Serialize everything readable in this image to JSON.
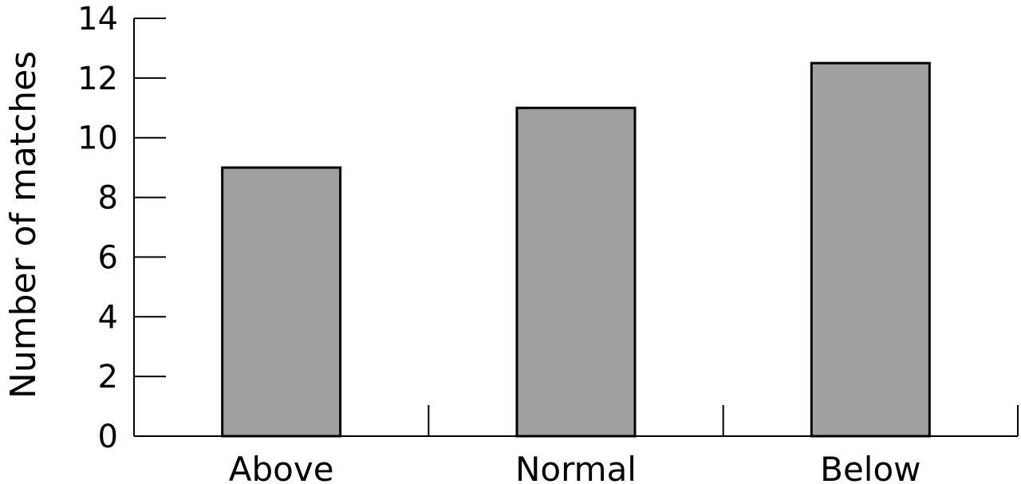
{
  "chart_data": {
    "type": "bar",
    "categories": [
      "Above",
      "Normal",
      "Below"
    ],
    "values": [
      9,
      11,
      12.5
    ],
    "title": "",
    "xlabel": "",
    "ylabel": "Number of matches",
    "ylim": [
      0,
      14
    ],
    "yticks": [
      0,
      2,
      4,
      6,
      8,
      10,
      12,
      14
    ],
    "grid": false,
    "colors": {
      "bar_fill": "#a0a0a0",
      "bar_stroke": "#000000",
      "axis": "#000000"
    }
  }
}
